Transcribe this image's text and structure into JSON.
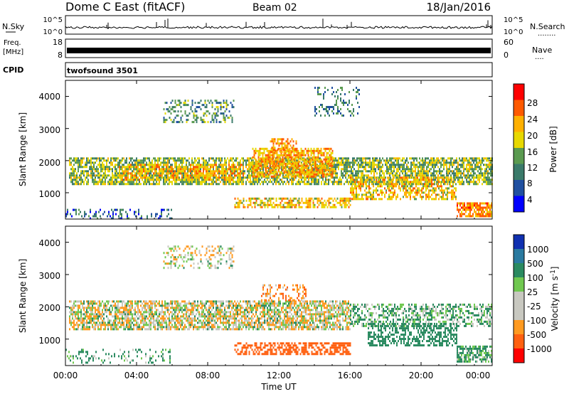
{
  "header": {
    "station": "Dome C East (fitACF)",
    "beam": "Beam 02",
    "date": "18/Jan/2016"
  },
  "nsky": {
    "label": "N.Sky",
    "ticks": [
      "10^5",
      "10^0"
    ],
    "right_label": "N.Search",
    "right_dots": "........",
    "right_ticks": [
      "10^5",
      "10^0"
    ]
  },
  "freq": {
    "label_line1": "Freq.",
    "label_line2": "[MHz]",
    "ticks": [
      "18",
      "8"
    ],
    "right_label": "Nave",
    "right_dots": "....",
    "right_ticks": [
      "60",
      "0"
    ]
  },
  "cpid": {
    "label": "CPID",
    "mode": "twofsound 3501"
  },
  "power_panel": {
    "ylabel": "Slant Range [km]",
    "yticks": [
      "4000",
      "3000",
      "2000",
      "1000"
    ],
    "colorbar_label": "Power [dB]",
    "colorbar_ticks": [
      "28",
      "24",
      "20",
      "16",
      "12",
      "8",
      "4"
    ],
    "colorbar_colors": [
      "#ff0000",
      "#ff5a00",
      "#ffb000",
      "#e7d800",
      "#5a9a50",
      "#3a7a6a",
      "#2050a0",
      "#0000ff"
    ]
  },
  "velocity_panel": {
    "ylabel": "Slant Range [km]",
    "yticks": [
      "4000",
      "3000",
      "2000",
      "1000"
    ],
    "colorbar_label_main": "Velocity  [m s",
    "colorbar_label_sup": "-1",
    "colorbar_label_end": "]",
    "colorbar_ticks": [
      "1000",
      "500",
      "100",
      "25",
      "-25",
      "-100",
      "-500",
      "-1000"
    ],
    "colorbar_colors": [
      "#1030b0",
      "#2a7aa0",
      "#2a8a60",
      "#70c850",
      "#c8c8c0",
      "#c8c8c0",
      "#ff9a20",
      "#ff6010",
      "#ff0000"
    ]
  },
  "xaxis": {
    "label": "Time UT",
    "ticks": [
      "00:00",
      "04:00",
      "08:00",
      "12:00",
      "16:00",
      "20:00",
      "00:00"
    ]
  },
  "chart_data": {
    "type": "heatmap",
    "title": "Dome C East (fitACF)",
    "subtitle": "Beam 02",
    "date": "18/Jan/2016",
    "xlabel": "Time UT",
    "x_range_hours": [
      0,
      24
    ],
    "ylabel": "Slant Range [km]",
    "ylim_km": [
      180,
      4500
    ],
    "grid": false,
    "panels": [
      {
        "name": "Power [dB]",
        "colorbar_range": [
          0,
          32
        ],
        "regions": [
          {
            "t": [
              0.2,
              24.0
            ],
            "r": [
              1300,
              2100
            ],
            "value": 17,
            "density": 0.7
          },
          {
            "t": [
              3.0,
              10.0
            ],
            "r": [
              1400,
              1900
            ],
            "value": 23,
            "density": 0.6
          },
          {
            "t": [
              10.5,
              15.0
            ],
            "r": [
              1500,
              2400
            ],
            "value": 24,
            "density": 0.7
          },
          {
            "t": [
              11.5,
              13.0
            ],
            "r": [
              2300,
              2700
            ],
            "value": 26,
            "density": 0.5
          },
          {
            "t": [
              9.5,
              16.0
            ],
            "r": [
              550,
              850
            ],
            "value": 22,
            "density": 0.6
          },
          {
            "t": [
              16.0,
              22.0
            ],
            "r": [
              800,
              1500
            ],
            "value": 22,
            "density": 0.55
          },
          {
            "t": [
              22.0,
              24.0
            ],
            "r": [
              300,
              700
            ],
            "value": 27,
            "density": 0.75
          },
          {
            "t": [
              5.5,
              9.5
            ],
            "r": [
              3200,
              3900
            ],
            "value": 14,
            "density": 0.35
          },
          {
            "t": [
              14.0,
              16.5
            ],
            "r": [
              3400,
              4300
            ],
            "value": 12,
            "density": 0.25
          },
          {
            "t": [
              0.0,
              6.0
            ],
            "r": [
              200,
              500
            ],
            "value": 9,
            "density": 0.25
          }
        ]
      },
      {
        "name": "Velocity [m s-1]",
        "colorbar_range": [
          -1000,
          1000
        ],
        "regions": [
          {
            "t": [
              0.2,
              16.0
            ],
            "r": [
              1300,
              2200
            ],
            "value": 0,
            "density": 0.7
          },
          {
            "t": [
              16.0,
              24.0
            ],
            "r": [
              1400,
              2100
            ],
            "value": 60,
            "density": 0.5
          },
          {
            "t": [
              9.5,
              16.0
            ],
            "r": [
              550,
              900
            ],
            "value": -300,
            "density": 0.6
          },
          {
            "t": [
              17.0,
              22.0
            ],
            "r": [
              800,
              1500
            ],
            "value": 200,
            "density": 0.5
          },
          {
            "t": [
              22.0,
              24.0
            ],
            "r": [
              300,
              800
            ],
            "value": 80,
            "density": 0.7
          },
          {
            "t": [
              5.5,
              9.5
            ],
            "r": [
              3200,
              3900
            ],
            "value": 0,
            "density": 0.3
          },
          {
            "t": [
              11.0,
              13.5
            ],
            "r": [
              2200,
              2700
            ],
            "value": -80,
            "density": 0.35
          },
          {
            "t": [
              0.0,
              6.0
            ],
            "r": [
              250,
              700
            ],
            "value": 80,
            "density": 0.2
          }
        ]
      }
    ]
  }
}
